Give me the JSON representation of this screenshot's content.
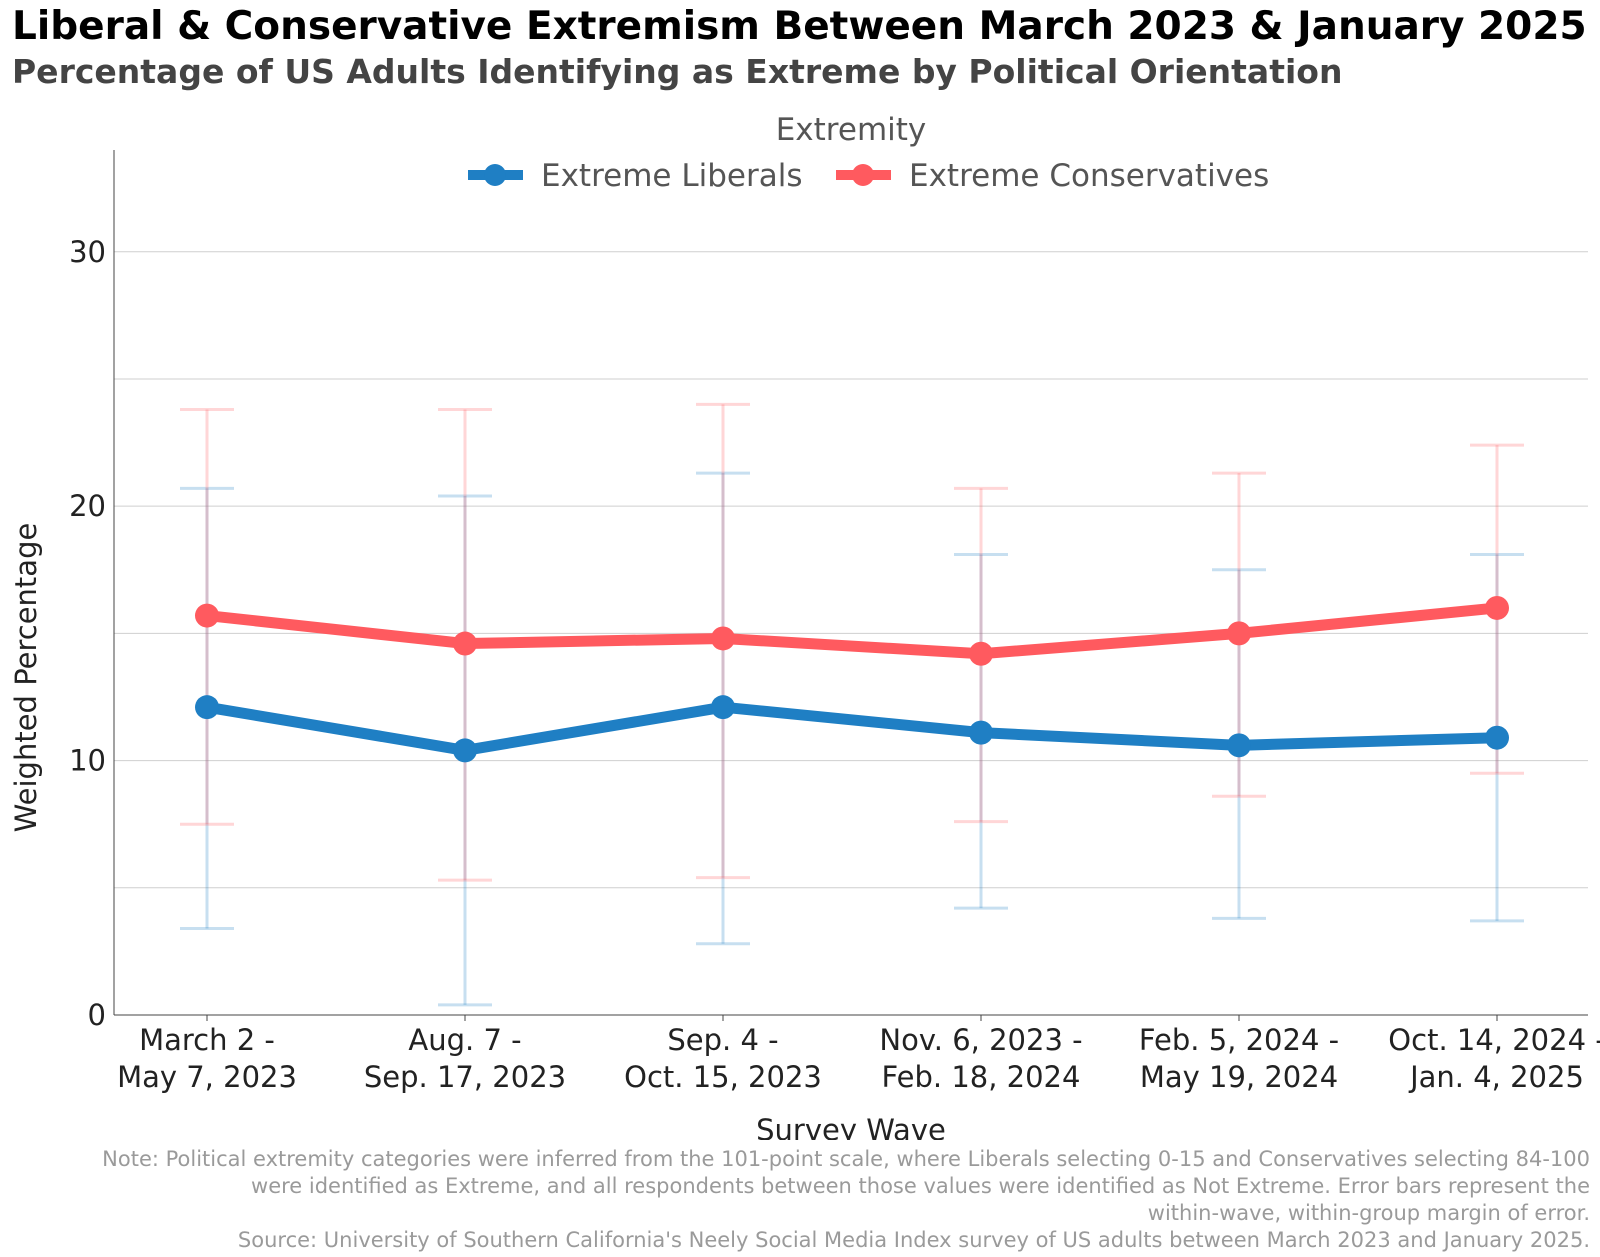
{
  "title": "Liberal & Conservative Extremism Between March 2023 & January 2025",
  "subtitle": "Percentage of US Adults Identifying as Extreme by Political Orientation",
  "note": [
    "Note: Political extremity categories were inferred from the 101-point scale, where Liberals selecting 0-15 and Conservatives selecting 84-100",
    "were identified as Extreme, and all respondents between those values were identified as Not Extreme. Error bars represent the",
    "within-wave, within-group margin of error.",
    "Source: University of Southern California's Neely Social Media Index survey of US adults between March 2023 and January 2025."
  ],
  "chart_data": {
    "type": "line",
    "xlabel": "Survey Wave",
    "ylabel": "Weighted Percentage",
    "ylim": [
      0,
      34
    ],
    "yticks": [
      0,
      10,
      20,
      30
    ],
    "grid": true,
    "legend_title": "Extremity",
    "legend_position": "top-center",
    "categories": [
      [
        "March 2 -",
        "May 7, 2023"
      ],
      [
        "Aug. 7 -",
        "Sep. 17, 2023"
      ],
      [
        "Sep. 4 -",
        "Oct. 15, 2023"
      ],
      [
        "Nov. 6, 2023 -",
        "Feb. 18, 2024"
      ],
      [
        "Feb. 5, 2024 -",
        "May 19, 2024"
      ],
      [
        "Oct. 14, 2024 -",
        "Jan. 4, 2025"
      ]
    ],
    "series": [
      {
        "name": "Extreme Liberals",
        "color": "#1f7fc4",
        "values": [
          12.1,
          10.4,
          12.1,
          11.1,
          10.6,
          10.9
        ],
        "error_low": [
          3.4,
          0.4,
          2.8,
          4.2,
          3.8,
          3.7
        ],
        "error_high": [
          20.7,
          20.4,
          21.3,
          18.1,
          17.5,
          18.1
        ]
      },
      {
        "name": "Extreme Conservatives",
        "color": "#ff5a5f",
        "values": [
          15.7,
          14.6,
          14.8,
          14.2,
          15.0,
          16.0
        ],
        "error_low": [
          7.5,
          5.3,
          5.4,
          7.6,
          8.6,
          9.5
        ],
        "error_high": [
          23.8,
          23.8,
          24.0,
          20.7,
          21.3,
          22.4
        ]
      }
    ]
  }
}
